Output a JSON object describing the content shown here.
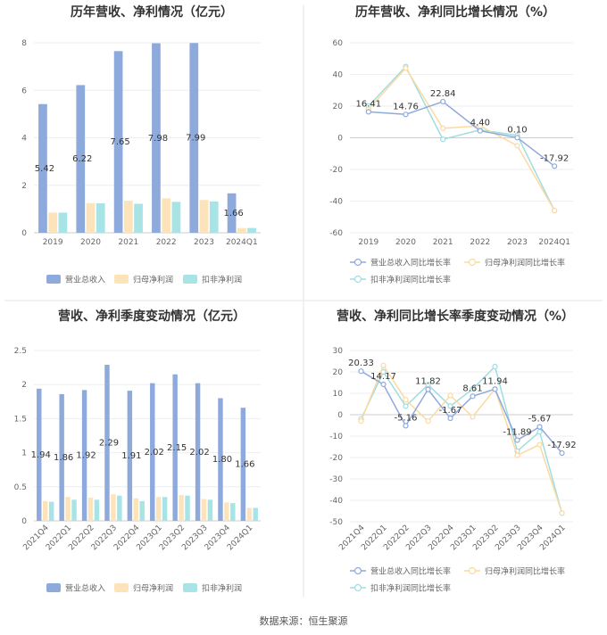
{
  "footer": "数据来源：恒生聚源",
  "colors": {
    "revenue_bar": "#8eaadc",
    "parent_bar": "#fde3b9",
    "deducted_bar": "#a8e3e6",
    "revenue_line": "#8eaadc",
    "parent_line": "#fcd9a0",
    "deducted_line": "#9fdde2",
    "axis": "#cccccc",
    "grid": "#eeeeee",
    "text": "#666666",
    "title": "#333333"
  },
  "chart_data": [
    {
      "type": "bar",
      "title": "历年营收、净利情况（亿元）",
      "categories": [
        "2019",
        "2020",
        "2021",
        "2022",
        "2023",
        "2024Q1"
      ],
      "ylim": [
        0,
        8
      ],
      "yticks": [
        0,
        2,
        4,
        6,
        8
      ],
      "series": [
        {
          "name": "营业总收入",
          "values": [
            5.42,
            6.22,
            7.65,
            7.98,
            7.99,
            1.66
          ],
          "labels": [
            "5.42",
            "6.22",
            "7.65",
            "7.98",
            "7.99",
            "1.66"
          ]
        },
        {
          "name": "归母净利润",
          "values": [
            0.85,
            1.25,
            1.35,
            1.45,
            1.38,
            0.2
          ]
        },
        {
          "name": "扣非净利润",
          "values": [
            0.85,
            1.24,
            1.22,
            1.3,
            1.32,
            0.2
          ]
        }
      ],
      "legend": "bottom",
      "grid": true
    },
    {
      "type": "line",
      "title": "历年营收、净利同比增长情况（%）",
      "categories": [
        "2019",
        "2020",
        "2021",
        "2022",
        "2023",
        "2024Q1"
      ],
      "ylim": [
        -60,
        60
      ],
      "yticks": [
        -60,
        -40,
        -20,
        0,
        20,
        40,
        60
      ],
      "series": [
        {
          "name": "营业总收入同比增长率",
          "values": [
            16.41,
            14.76,
            22.84,
            4.4,
            0.1,
            -17.92
          ],
          "labels": [
            "16.41",
            "14.76",
            "22.84",
            "4.40",
            "0.10",
            "-17.92"
          ]
        },
        {
          "name": "归母净利润同比增长率",
          "values": [
            18,
            44,
            6,
            7.5,
            -5,
            -46
          ]
        },
        {
          "name": "扣非净利润同比增长率",
          "values": [
            20,
            45,
            -1,
            5,
            1.5,
            -46
          ]
        }
      ],
      "legend": "bottom",
      "grid": true
    },
    {
      "type": "bar",
      "title": "营收、净利季度变动情况（亿元）",
      "categories": [
        "2021Q4",
        "2022Q1",
        "2022Q2",
        "2022Q3",
        "2022Q4",
        "2023Q1",
        "2023Q2",
        "2023Q3",
        "2023Q4",
        "2024Q1"
      ],
      "ylim": [
        0,
        2.5
      ],
      "yticks": [
        0,
        0.5,
        1,
        1.5,
        2,
        2.5
      ],
      "series": [
        {
          "name": "营业总收入",
          "values": [
            1.94,
            1.86,
            1.92,
            2.29,
            1.91,
            2.02,
            2.15,
            2.02,
            1.8,
            1.66
          ],
          "labels": [
            "1.94",
            "1.86",
            "1.92",
            "2.29",
            "1.91",
            "2.02",
            "2.15",
            "2.02",
            "1.80",
            "1.66"
          ]
        },
        {
          "name": "归母净利润",
          "values": [
            0.29,
            0.35,
            0.34,
            0.39,
            0.33,
            0.35,
            0.38,
            0.32,
            0.27,
            0.19
          ]
        },
        {
          "name": "扣非净利润",
          "values": [
            0.28,
            0.31,
            0.31,
            0.37,
            0.29,
            0.35,
            0.37,
            0.31,
            0.26,
            0.19
          ]
        }
      ],
      "legend": "bottom",
      "grid": true
    },
    {
      "type": "line",
      "title": "营收、净利同比增长率季度变动情况（%）",
      "categories": [
        "2021Q4",
        "2022Q1",
        "2022Q2",
        "2022Q3",
        "2022Q4",
        "2023Q1",
        "2023Q2",
        "2023Q3",
        "2023Q4",
        "2024Q1"
      ],
      "ylim": [
        -50,
        30
      ],
      "yticks": [
        -50,
        -40,
        -30,
        -20,
        -10,
        0,
        10,
        20,
        30
      ],
      "series": [
        {
          "name": "营业总收入同比增长率",
          "values": [
            20.33,
            14.17,
            -5.16,
            11.82,
            -1.67,
            8.61,
            11.94,
            -11.89,
            -5.67,
            -17.92
          ],
          "labels": [
            "20.33",
            "14.17",
            "-5.16",
            "11.82",
            "-1.67",
            "8.61",
            "11.94",
            "-11.89",
            "-5.67",
            "-17.92"
          ]
        },
        {
          "name": "归母净利润同比增长率",
          "values": [
            -3,
            23,
            7,
            -3,
            9,
            -1,
            12,
            -19,
            -14,
            -46
          ]
        },
        {
          "name": "扣非净利润同比增长率",
          "values": [
            -2,
            20,
            4,
            14,
            4,
            12,
            22.5,
            -17,
            -8,
            -46
          ]
        }
      ],
      "legend": "bottom",
      "grid": true
    }
  ]
}
